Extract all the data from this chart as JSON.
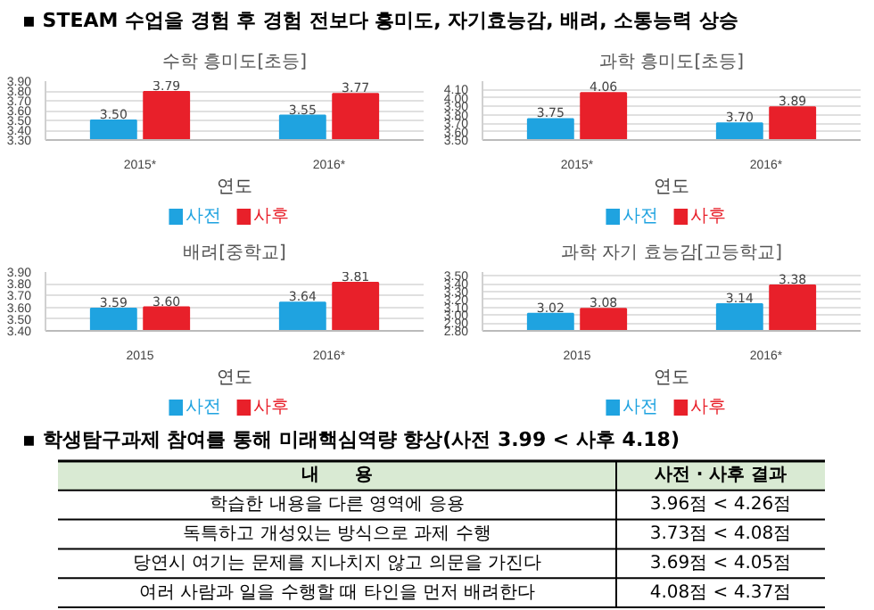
{
  "chart_data": [
    {
      "type": "other",
      "title": "▪ STEAM 수업을 경험 후 경험 전보다 흥미도, 자기효능감, 배려, 소통능력 상승"
    },
    {
      "type": "bar",
      "title": "수학 흥미도[초등]",
      "categories": [
        "2015*",
        "2016*"
      ],
      "xlabel": "연도",
      "ylim": [
        3.3,
        3.9
      ],
      "yticks": [
        {
          "value": 3.3,
          "label": "3.30"
        },
        {
          "value": 3.4,
          "label": "3.40"
        },
        {
          "value": 3.5,
          "label": "3.50"
        },
        {
          "value": 3.6,
          "label": "3.60"
        },
        {
          "value": 3.7,
          "label": "3.70"
        },
        {
          "value": 3.8,
          "label": "3.80"
        },
        {
          "value": 3.9,
          "label": "3.90"
        }
      ],
      "grid": "y",
      "legend": "bottom",
      "series": [
        {
          "name": "사전",
          "color": "#1fa3e0",
          "values": [
            3.5,
            3.55
          ],
          "value_labels": [
            "3.50",
            "3.55"
          ]
        },
        {
          "name": "사후",
          "color": "#e8202a",
          "values": [
            3.79,
            3.77
          ],
          "value_labels": [
            "3.79",
            "3.77"
          ]
        }
      ]
    },
    {
      "type": "bar",
      "title": "과학 흥미도[초등]",
      "categories": [
        "2015*",
        "2016*"
      ],
      "xlabel": "연도",
      "ylim": [
        3.5,
        4.2
      ],
      "yticks": [
        {
          "value": 3.5,
          "label": "3.50"
        },
        {
          "value": 3.6,
          "label": "3.60"
        },
        {
          "value": 3.7,
          "label": "3.70"
        },
        {
          "value": 3.8,
          "label": "3.80"
        },
        {
          "value": 3.9,
          "label": "3.90"
        },
        {
          "value": 4.0,
          "label": "4.00"
        },
        {
          "value": 4.1,
          "label": "4.10"
        }
      ],
      "grid": "y",
      "legend": "bottom",
      "series": [
        {
          "name": "사전",
          "color": "#1fa3e0",
          "values": [
            3.75,
            3.7
          ],
          "value_labels": [
            "3.75",
            "3.70"
          ]
        },
        {
          "name": "사후",
          "color": "#e8202a",
          "values": [
            4.06,
            3.89
          ],
          "value_labels": [
            "4.06",
            "3.89"
          ]
        }
      ]
    },
    {
      "type": "bar",
      "title": "배려[중학교]",
      "categories": [
        "2015",
        "2016*"
      ],
      "xlabel": "연도",
      "ylim": [
        3.4,
        3.9
      ],
      "yticks": [
        {
          "value": 3.4,
          "label": "3.40"
        },
        {
          "value": 3.5,
          "label": "3.50"
        },
        {
          "value": 3.6,
          "label": "3.60"
        },
        {
          "value": 3.7,
          "label": "3.70"
        },
        {
          "value": 3.8,
          "label": "3.80"
        },
        {
          "value": 3.9,
          "label": "3.90"
        }
      ],
      "grid": "y",
      "legend": "bottom",
      "series": [
        {
          "name": "사전",
          "color": "#1fa3e0",
          "values": [
            3.59,
            3.64
          ],
          "value_labels": [
            "3.59",
            "3.64"
          ]
        },
        {
          "name": "사후",
          "color": "#e8202a",
          "values": [
            3.6,
            3.81
          ],
          "value_labels": [
            "3.60",
            "3.81"
          ]
        }
      ]
    },
    {
      "type": "bar",
      "title": "과학 자기 효능감[고등학교]",
      "categories": [
        "2015",
        "2016*"
      ],
      "xlabel": "연도",
      "ylim": [
        2.8,
        3.55
      ],
      "yticks": [
        {
          "value": 2.8,
          "label": "2.80"
        },
        {
          "value": 2.9,
          "label": "2.90"
        },
        {
          "value": 3.0,
          "label": "3.00"
        },
        {
          "value": 3.1,
          "label": "3.10"
        },
        {
          "value": 3.2,
          "label": "3.20"
        },
        {
          "value": 3.3,
          "label": "3.30"
        },
        {
          "value": 3.4,
          "label": "3.40"
        },
        {
          "value": 3.5,
          "label": "3.50"
        }
      ],
      "grid": "y",
      "legend": "bottom",
      "series": [
        {
          "name": "사전",
          "color": "#1fa3e0",
          "values": [
            3.02,
            3.14
          ],
          "value_labels": [
            "3.02",
            "3.14"
          ]
        },
        {
          "name": "사후",
          "color": "#e8202a",
          "values": [
            3.08,
            3.38
          ],
          "value_labels": [
            "3.08",
            "3.38"
          ]
        }
      ]
    },
    {
      "type": "other",
      "title": "▪ 학생탐구과제 참여를 통해 미래핵심역량 향상(사전 3.99 < 사후 4.18)",
      "annotations": [
        "내　　용",
        "사전 · 사후 결과",
        "학습한 내용을 다른 영역에 응용",
        "3.96점 < 4.26점",
        "독특하고 개성있는 방식으로 과제 수행",
        "3.73점 < 4.08점",
        "당연시 여기는 문제를 지나치지 않고 의문을 가진다",
        "3.69점 < 4.05점",
        "여러 사람과 일을 수행할 때 타인을 먼저 배려한다",
        "4.08점 < 4.37점"
      ]
    }
  ]
}
